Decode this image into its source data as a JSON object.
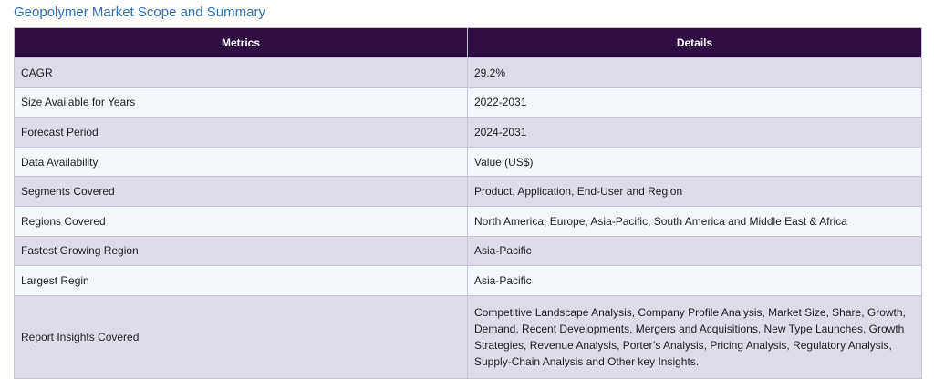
{
  "title": "Geopolymer Market Scope and Summary",
  "table": {
    "headers": [
      "Metrics",
      "Details"
    ],
    "rows": [
      {
        "metric": "CAGR",
        "detail": "29.2%"
      },
      {
        "metric": "Size Available for Years",
        "detail": "2022-2031"
      },
      {
        "metric": "Forecast Period",
        "detail": "2024-2031"
      },
      {
        "metric": "Data Availability",
        "detail": "Value (US$)"
      },
      {
        "metric": "Segments Covered",
        "detail": "Product, Application, End-User and Region"
      },
      {
        "metric": "Regions Covered",
        "detail": "North America, Europe, Asia-Pacific, South America and Middle East & Africa"
      },
      {
        "metric": "Fastest Growing Region",
        "detail": "Asia-Pacific"
      },
      {
        "metric": "Largest Regin",
        "detail": "Asia-Pacific"
      },
      {
        "metric": "Report Insights Covered",
        "detail": "Competitive Landscape Analysis, Company Profile Analysis, Market Size, Share, Growth, Demand, Recent Developments, Mergers and Acquisitions, New Type Launches, Growth Strategies, Revenue Analysis, Porter’s Analysis, Pricing Analysis, Regulatory Analysis, Supply-Chain Analysis and Other key Insights."
      }
    ]
  },
  "colors": {
    "title": "#2f6fb3",
    "header_bg": "#2e0e45",
    "row_odd_bg": "#dfdcea",
    "row_even_bg": "#f2f7fb",
    "border": "#c8c2d6"
  }
}
